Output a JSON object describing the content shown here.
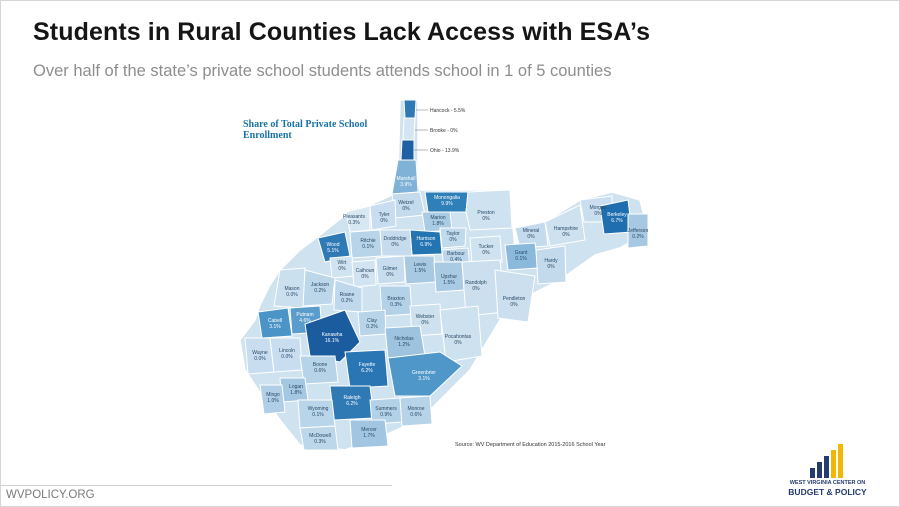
{
  "header": {
    "title": "Students in Rural Counties Lack Access with ESA’s",
    "subtitle": "Over half of the state’s private school students attends school in 1 of 5 counties"
  },
  "map": {
    "legend_title": "Share of Total Private School Enrollment",
    "source": "Source: WV Department of Education 2015-2016 School Year",
    "panhandle_labels": [
      {
        "county": "Hancock",
        "value": "5.5%"
      },
      {
        "county": "Brooke",
        "value": "0%"
      },
      {
        "county": "Ohio",
        "value": "13.9%"
      }
    ],
    "counties": [
      {
        "name": "Marshall",
        "value": "3.9%"
      },
      {
        "name": "Wetzel",
        "value": "0%"
      },
      {
        "name": "Tyler",
        "value": "0%"
      },
      {
        "name": "Pleasants",
        "value": "0.3%"
      },
      {
        "name": "Monongalia",
        "value": "9.9%"
      },
      {
        "name": "Marion",
        "value": "1.8%"
      },
      {
        "name": "Preston",
        "value": "0%"
      },
      {
        "name": "Harrison",
        "value": "6.9%"
      },
      {
        "name": "Taylor",
        "value": "0%"
      },
      {
        "name": "Wood",
        "value": "5.1%"
      },
      {
        "name": "Ritchie",
        "value": "0.1%"
      },
      {
        "name": "Doddridge",
        "value": "0%"
      },
      {
        "name": "Wirt",
        "value": "0%"
      },
      {
        "name": "Barbour",
        "value": "0.4%"
      },
      {
        "name": "Tucker",
        "value": "0%"
      },
      {
        "name": "Mineral",
        "value": "0%"
      },
      {
        "name": "Hampshire",
        "value": "0%"
      },
      {
        "name": "Morgan",
        "value": "0%"
      },
      {
        "name": "Berkeley",
        "value": "6.7%"
      },
      {
        "name": "Jefferson",
        "value": "0.2%"
      },
      {
        "name": "Grant",
        "value": "0.1%"
      },
      {
        "name": "Hardy",
        "value": "0%"
      },
      {
        "name": "Calhoun",
        "value": "0%"
      },
      {
        "name": "Gilmer",
        "value": "0%"
      },
      {
        "name": "Lewis",
        "value": "1.5%"
      },
      {
        "name": "Upshur",
        "value": "1.5%"
      },
      {
        "name": "Randolph",
        "value": "0%"
      },
      {
        "name": "Jackson",
        "value": "0.2%"
      },
      {
        "name": "Roane",
        "value": "0.2%"
      },
      {
        "name": "Mason",
        "value": "0.0%"
      },
      {
        "name": "Braxton",
        "value": "0.3%"
      },
      {
        "name": "Putnam",
        "value": "4.6%"
      },
      {
        "name": "Webster",
        "value": "0%"
      },
      {
        "name": "Pendleton",
        "value": "0%"
      },
      {
        "name": "Cabell",
        "value": "3.1%"
      },
      {
        "name": "Clay",
        "value": "0.2%"
      },
      {
        "name": "Kanawha",
        "value": "16.1%"
      },
      {
        "name": "Nicholas",
        "value": "1.2%"
      },
      {
        "name": "Pocahontas",
        "value": "0%"
      },
      {
        "name": "Wayne",
        "value": "0.0%"
      },
      {
        "name": "Lincoln",
        "value": "0.0%"
      },
      {
        "name": "Boone",
        "value": "0.6%"
      },
      {
        "name": "Fayette",
        "value": "6.2%"
      },
      {
        "name": "Greenbrier",
        "value": "3.1%"
      },
      {
        "name": "Logan",
        "value": "1.8%"
      },
      {
        "name": "Raleigh",
        "value": "6.2%"
      },
      {
        "name": "Mingo",
        "value": "1.0%"
      },
      {
        "name": "Wyoming",
        "value": "0.1%"
      },
      {
        "name": "Summers",
        "value": "0.9%"
      },
      {
        "name": "Monroe",
        "value": "0.6%"
      },
      {
        "name": "McDowell",
        "value": "0.3%"
      },
      {
        "name": "Mercer",
        "value": "1.7%"
      }
    ],
    "colors": {
      "level_0": "#d3e5f1",
      "level_1": "#b3d1e7",
      "level_2": "#7fb2d6",
      "level_3": "#3c8ac0",
      "level_4": "#1f66a8",
      "border": "#ffffff"
    }
  },
  "footer": {
    "site": "WVPOLICY.ORG",
    "logo_line1": "WEST VIRGINIA CENTER ON",
    "logo_line2": "BUDGET & POLICY"
  }
}
